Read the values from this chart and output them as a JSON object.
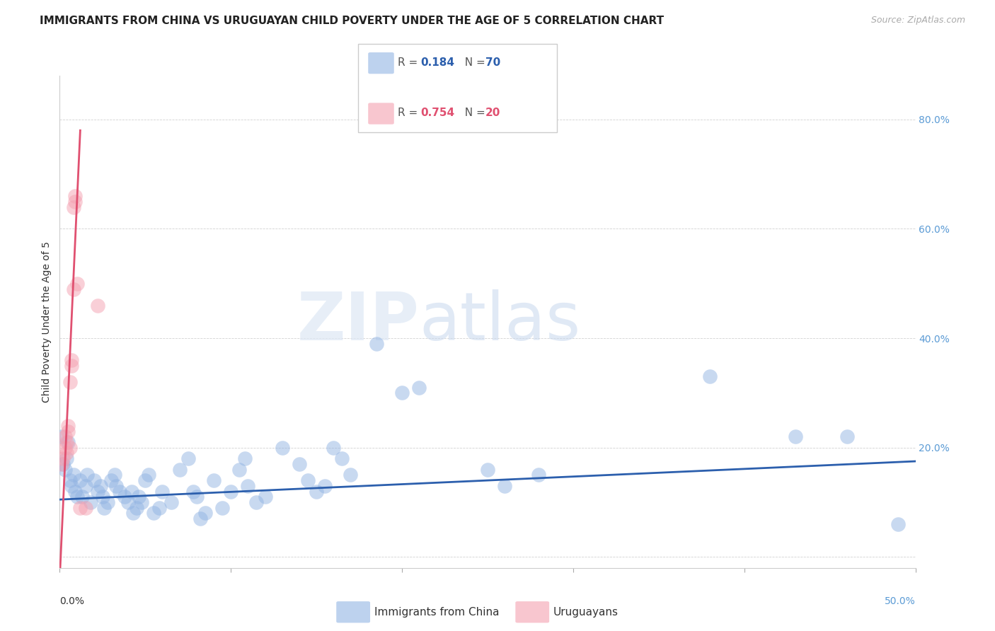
{
  "title": "IMMIGRANTS FROM CHINA VS URUGUAYAN CHILD POVERTY UNDER THE AGE OF 5 CORRELATION CHART",
  "source": "Source: ZipAtlas.com",
  "ylabel": "Child Poverty Under the Age of 5",
  "xlim": [
    0.0,
    0.5
  ],
  "ylim": [
    -0.02,
    0.88
  ],
  "xticks": [
    0.0,
    0.1,
    0.2,
    0.3,
    0.4,
    0.5
  ],
  "yticks": [
    0.0,
    0.2,
    0.4,
    0.6,
    0.8
  ],
  "yticklabels": [
    "",
    "20.0%",
    "40.0%",
    "60.0%",
    "80.0%"
  ],
  "blue_R": 0.184,
  "blue_N": 70,
  "pink_R": 0.754,
  "pink_N": 20,
  "blue_color": "#92b4e3",
  "pink_color": "#f4a0b0",
  "blue_line_color": "#2c5fad",
  "pink_line_color": "#e05070",
  "blue_scatter": [
    [
      0.001,
      0.22
    ],
    [
      0.002,
      0.17
    ],
    [
      0.003,
      0.16
    ],
    [
      0.004,
      0.18
    ],
    [
      0.005,
      0.21
    ],
    [
      0.006,
      0.14
    ],
    [
      0.007,
      0.13
    ],
    [
      0.008,
      0.15
    ],
    [
      0.009,
      0.12
    ],
    [
      0.01,
      0.11
    ],
    [
      0.012,
      0.14
    ],
    [
      0.013,
      0.11
    ],
    [
      0.015,
      0.13
    ],
    [
      0.016,
      0.15
    ],
    [
      0.018,
      0.1
    ],
    [
      0.02,
      0.14
    ],
    [
      0.022,
      0.12
    ],
    [
      0.024,
      0.13
    ],
    [
      0.025,
      0.11
    ],
    [
      0.026,
      0.09
    ],
    [
      0.028,
      0.1
    ],
    [
      0.03,
      0.14
    ],
    [
      0.032,
      0.15
    ],
    [
      0.033,
      0.13
    ],
    [
      0.035,
      0.12
    ],
    [
      0.038,
      0.11
    ],
    [
      0.04,
      0.1
    ],
    [
      0.042,
      0.12
    ],
    [
      0.043,
      0.08
    ],
    [
      0.045,
      0.09
    ],
    [
      0.046,
      0.11
    ],
    [
      0.048,
      0.1
    ],
    [
      0.05,
      0.14
    ],
    [
      0.052,
      0.15
    ],
    [
      0.055,
      0.08
    ],
    [
      0.058,
      0.09
    ],
    [
      0.06,
      0.12
    ],
    [
      0.065,
      0.1
    ],
    [
      0.07,
      0.16
    ],
    [
      0.075,
      0.18
    ],
    [
      0.078,
      0.12
    ],
    [
      0.08,
      0.11
    ],
    [
      0.082,
      0.07
    ],
    [
      0.085,
      0.08
    ],
    [
      0.09,
      0.14
    ],
    [
      0.095,
      0.09
    ],
    [
      0.1,
      0.12
    ],
    [
      0.105,
      0.16
    ],
    [
      0.108,
      0.18
    ],
    [
      0.11,
      0.13
    ],
    [
      0.115,
      0.1
    ],
    [
      0.12,
      0.11
    ],
    [
      0.13,
      0.2
    ],
    [
      0.14,
      0.17
    ],
    [
      0.145,
      0.14
    ],
    [
      0.15,
      0.12
    ],
    [
      0.155,
      0.13
    ],
    [
      0.16,
      0.2
    ],
    [
      0.165,
      0.18
    ],
    [
      0.17,
      0.15
    ],
    [
      0.185,
      0.39
    ],
    [
      0.2,
      0.3
    ],
    [
      0.21,
      0.31
    ],
    [
      0.25,
      0.16
    ],
    [
      0.26,
      0.13
    ],
    [
      0.28,
      0.15
    ],
    [
      0.38,
      0.33
    ],
    [
      0.43,
      0.22
    ],
    [
      0.46,
      0.22
    ],
    [
      0.49,
      0.06
    ]
  ],
  "pink_scatter": [
    [
      0.001,
      0.17
    ],
    [
      0.002,
      0.18
    ],
    [
      0.003,
      0.2
    ],
    [
      0.003,
      0.22
    ],
    [
      0.004,
      0.19
    ],
    [
      0.004,
      0.21
    ],
    [
      0.005,
      0.23
    ],
    [
      0.005,
      0.24
    ],
    [
      0.006,
      0.2
    ],
    [
      0.006,
      0.32
    ],
    [
      0.007,
      0.35
    ],
    [
      0.007,
      0.36
    ],
    [
      0.008,
      0.49
    ],
    [
      0.008,
      0.64
    ],
    [
      0.009,
      0.65
    ],
    [
      0.009,
      0.66
    ],
    [
      0.01,
      0.5
    ],
    [
      0.012,
      0.09
    ],
    [
      0.015,
      0.09
    ],
    [
      0.022,
      0.46
    ]
  ],
  "blue_regress": [
    0.0,
    0.105,
    0.5,
    0.175
  ],
  "pink_regress": [
    0.0,
    -0.04,
    0.012,
    0.78
  ],
  "watermark_zip": "ZIP",
  "watermark_atlas": "atlas",
  "legend_labels": [
    "Immigrants from China",
    "Uruguayans"
  ],
  "title_fontsize": 11,
  "axis_label_fontsize": 10,
  "tick_fontsize": 10,
  "source_fontsize": 9,
  "legend_fontsize": 11,
  "right_tick_color": "#5b9bd5",
  "bottom_label_color": "#5b9bd5"
}
